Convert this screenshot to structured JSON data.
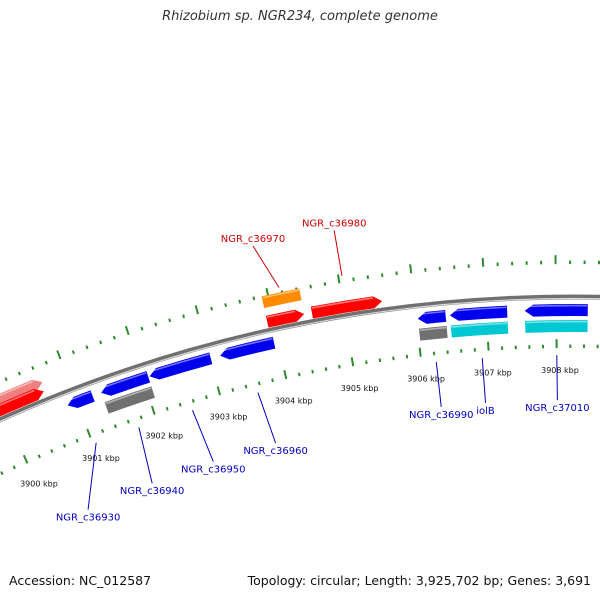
{
  "title": "Rhizobium sp. NGR234, complete genome",
  "footer": {
    "accession": "Accession: NC_012587",
    "summary": "Topology: circular; Length: 3,925,702 bp; Genes: 3,691"
  },
  "colors": {
    "forward": "#ff0000",
    "forward_faded": "#f08080",
    "reverse": "#0000ee",
    "rna": "#ff8c00",
    "pseudo": "#707070",
    "cyan": "#00c8d2",
    "tick": "#2e8b2e",
    "backbone": "#707070",
    "label_forward": "#cc0000",
    "label_reverse": "#0000bb"
  },
  "scale": {
    "start_kbp": 3899.6,
    "end_kbp": 3908.6,
    "labels": [
      "3900 kbp",
      "3901 kbp",
      "3902 kbp",
      "3903 kbp",
      "3904 kbp",
      "3905 kbp",
      "3906 kbp",
      "3907 kbp",
      "3908 kbp"
    ]
  },
  "genes": [
    {
      "name": "",
      "strand": "forward",
      "type": "faded",
      "start_kbp": 3899.6,
      "end_kbp": 3900.65
    },
    {
      "name": "",
      "strand": "forward",
      "type": "cds",
      "start_kbp": 3899.6,
      "end_kbp": 3900.62
    },
    {
      "name": "NGR_c36970",
      "strand": "forward",
      "type": "rna",
      "start_kbp": 3903.91,
      "end_kbp": 3904.44
    },
    {
      "name": "",
      "strand": "forward",
      "type": "cds",
      "start_kbp": 3903.91,
      "end_kbp": 3904.44
    },
    {
      "name": "NGR_c36980",
      "strand": "forward",
      "type": "cds",
      "start_kbp": 3904.55,
      "end_kbp": 3905.55
    },
    {
      "name": "NGR_c36930",
      "strand": "reverse",
      "type": "cds",
      "start_kbp": 3900.86,
      "end_kbp": 3901.24
    },
    {
      "name": "NGR_c36940",
      "strand": "reverse",
      "type": "cds",
      "start_kbp": 3901.37,
      "end_kbp": 3902.08
    },
    {
      "name": "",
      "strand": "reverse",
      "type": "pseudo",
      "start_kbp": 3901.37,
      "end_kbp": 3902.08
    },
    {
      "name": "NGR_c36950",
      "strand": "reverse",
      "type": "cds",
      "start_kbp": 3902.1,
      "end_kbp": 3903.01
    },
    {
      "name": "NGR_c36960",
      "strand": "reverse",
      "type": "cds",
      "start_kbp": 3903.15,
      "end_kbp": 3903.94
    },
    {
      "name": "NGR_c36990",
      "strand": "reverse",
      "type": "cds",
      "start_kbp": 3906.02,
      "end_kbp": 3906.42
    },
    {
      "name": "",
      "strand": "reverse",
      "type": "pseudo",
      "start_kbp": 3906.02,
      "end_kbp": 3906.42
    },
    {
      "name": "iolB",
      "strand": "reverse",
      "type": "cds",
      "start_kbp": 3906.48,
      "end_kbp": 3907.3
    },
    {
      "name": "",
      "strand": "reverse",
      "type": "cyan",
      "start_kbp": 3906.48,
      "end_kbp": 3907.3
    },
    {
      "name": "NGR_c37010",
      "strand": "reverse",
      "type": "cds",
      "start_kbp": 3907.55,
      "end_kbp": 3908.45
    },
    {
      "name": "",
      "strand": "reverse",
      "type": "cyan",
      "start_kbp": 3907.55,
      "end_kbp": 3908.45
    }
  ]
}
